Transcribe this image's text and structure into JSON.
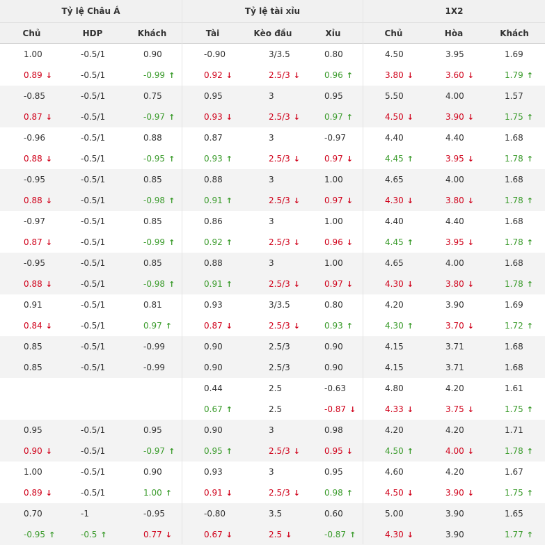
{
  "headers": {
    "groups": [
      "Tỷ lệ Châu Á",
      "Tỷ lệ tài xỉu",
      "1X2"
    ],
    "columns": [
      "Chủ",
      "HDP",
      "Khách",
      "Tài",
      "Kèo đầu",
      "Xỉu",
      "Chủ",
      "Hòa",
      "Khách"
    ]
  },
  "colors": {
    "up": "#3a9b2b",
    "down": "#d0021b",
    "neutral": "#333333",
    "alt_row": "#f3f3f3"
  },
  "rows": [
    {
      "c": [
        [
          "1.00",
          ""
        ],
        [
          "-0.5/1",
          ""
        ],
        [
          "0.90",
          ""
        ],
        [
          "-0.90",
          ""
        ],
        [
          "3/3.5",
          ""
        ],
        [
          "0.80",
          ""
        ],
        [
          "4.50",
          ""
        ],
        [
          "3.95",
          ""
        ],
        [
          "1.69",
          ""
        ]
      ]
    },
    {
      "c": [
        [
          "0.89",
          "down"
        ],
        [
          "-0.5/1",
          ""
        ],
        [
          "-0.99",
          "up"
        ],
        [
          "0.92",
          "down"
        ],
        [
          "2.5/3",
          "down"
        ],
        [
          "0.96",
          "up"
        ],
        [
          "3.80",
          "down"
        ],
        [
          "3.60",
          "down"
        ],
        [
          "1.79",
          "up"
        ]
      ]
    },
    {
      "c": [
        [
          "-0.85",
          ""
        ],
        [
          "-0.5/1",
          ""
        ],
        [
          "0.75",
          ""
        ],
        [
          "0.95",
          ""
        ],
        [
          "3",
          ""
        ],
        [
          "0.95",
          ""
        ],
        [
          "5.50",
          ""
        ],
        [
          "4.00",
          ""
        ],
        [
          "1.57",
          ""
        ]
      ]
    },
    {
      "c": [
        [
          "0.87",
          "down"
        ],
        [
          "-0.5/1",
          ""
        ],
        [
          "-0.97",
          "up"
        ],
        [
          "0.93",
          "down"
        ],
        [
          "2.5/3",
          "down"
        ],
        [
          "0.97",
          "up"
        ],
        [
          "4.50",
          "down"
        ],
        [
          "3.90",
          "down"
        ],
        [
          "1.75",
          "up"
        ]
      ]
    },
    {
      "c": [
        [
          "-0.96",
          ""
        ],
        [
          "-0.5/1",
          ""
        ],
        [
          "0.88",
          ""
        ],
        [
          "0.87",
          ""
        ],
        [
          "3",
          ""
        ],
        [
          "-0.97",
          ""
        ],
        [
          "4.40",
          ""
        ],
        [
          "4.40",
          ""
        ],
        [
          "1.68",
          ""
        ]
      ]
    },
    {
      "c": [
        [
          "0.88",
          "down"
        ],
        [
          "-0.5/1",
          ""
        ],
        [
          "-0.95",
          "up"
        ],
        [
          "0.93",
          "up"
        ],
        [
          "2.5/3",
          "down"
        ],
        [
          "0.97",
          "down"
        ],
        [
          "4.45",
          "up"
        ],
        [
          "3.95",
          "down"
        ],
        [
          "1.78",
          "up"
        ]
      ]
    },
    {
      "c": [
        [
          "-0.95",
          ""
        ],
        [
          "-0.5/1",
          ""
        ],
        [
          "0.85",
          ""
        ],
        [
          "0.88",
          ""
        ],
        [
          "3",
          ""
        ],
        [
          "1.00",
          ""
        ],
        [
          "4.65",
          ""
        ],
        [
          "4.00",
          ""
        ],
        [
          "1.68",
          ""
        ]
      ]
    },
    {
      "c": [
        [
          "0.88",
          "down"
        ],
        [
          "-0.5/1",
          ""
        ],
        [
          "-0.98",
          "up"
        ],
        [
          "0.91",
          "up"
        ],
        [
          "2.5/3",
          "down"
        ],
        [
          "0.97",
          "down"
        ],
        [
          "4.30",
          "down"
        ],
        [
          "3.80",
          "down"
        ],
        [
          "1.78",
          "up"
        ]
      ]
    },
    {
      "c": [
        [
          "-0.97",
          ""
        ],
        [
          "-0.5/1",
          ""
        ],
        [
          "0.85",
          ""
        ],
        [
          "0.86",
          ""
        ],
        [
          "3",
          ""
        ],
        [
          "1.00",
          ""
        ],
        [
          "4.40",
          ""
        ],
        [
          "4.40",
          ""
        ],
        [
          "1.68",
          ""
        ]
      ]
    },
    {
      "c": [
        [
          "0.87",
          "down"
        ],
        [
          "-0.5/1",
          ""
        ],
        [
          "-0.99",
          "up"
        ],
        [
          "0.92",
          "up"
        ],
        [
          "2.5/3",
          "down"
        ],
        [
          "0.96",
          "down"
        ],
        [
          "4.45",
          "up"
        ],
        [
          "3.95",
          "down"
        ],
        [
          "1.78",
          "up"
        ]
      ]
    },
    {
      "c": [
        [
          "-0.95",
          ""
        ],
        [
          "-0.5/1",
          ""
        ],
        [
          "0.85",
          ""
        ],
        [
          "0.88",
          ""
        ],
        [
          "3",
          ""
        ],
        [
          "1.00",
          ""
        ],
        [
          "4.65",
          ""
        ],
        [
          "4.00",
          ""
        ],
        [
          "1.68",
          ""
        ]
      ]
    },
    {
      "c": [
        [
          "0.88",
          "down"
        ],
        [
          "-0.5/1",
          ""
        ],
        [
          "-0.98",
          "up"
        ],
        [
          "0.91",
          "up"
        ],
        [
          "2.5/3",
          "down"
        ],
        [
          "0.97",
          "down"
        ],
        [
          "4.30",
          "down"
        ],
        [
          "3.80",
          "down"
        ],
        [
          "1.78",
          "up"
        ]
      ]
    },
    {
      "c": [
        [
          "0.91",
          ""
        ],
        [
          "-0.5/1",
          ""
        ],
        [
          "0.81",
          ""
        ],
        [
          "0.93",
          ""
        ],
        [
          "3/3.5",
          ""
        ],
        [
          "0.80",
          ""
        ],
        [
          "4.20",
          ""
        ],
        [
          "3.90",
          ""
        ],
        [
          "1.69",
          ""
        ]
      ]
    },
    {
      "c": [
        [
          "0.84",
          "down"
        ],
        [
          "-0.5/1",
          ""
        ],
        [
          "0.97",
          "up"
        ],
        [
          "0.87",
          "down"
        ],
        [
          "2.5/3",
          "down"
        ],
        [
          "0.93",
          "up"
        ],
        [
          "4.30",
          "up"
        ],
        [
          "3.70",
          "down"
        ],
        [
          "1.72",
          "up"
        ]
      ]
    },
    {
      "c": [
        [
          "0.85",
          ""
        ],
        [
          "-0.5/1",
          ""
        ],
        [
          "-0.99",
          ""
        ],
        [
          "0.90",
          ""
        ],
        [
          "2.5/3",
          ""
        ],
        [
          "0.90",
          ""
        ],
        [
          "4.15",
          ""
        ],
        [
          "3.71",
          ""
        ],
        [
          "1.68",
          ""
        ]
      ]
    },
    {
      "c": [
        [
          "0.85",
          ""
        ],
        [
          "-0.5/1",
          ""
        ],
        [
          "-0.99",
          ""
        ],
        [
          "0.90",
          ""
        ],
        [
          "2.5/3",
          ""
        ],
        [
          "0.90",
          ""
        ],
        [
          "4.15",
          ""
        ],
        [
          "3.71",
          ""
        ],
        [
          "1.68",
          ""
        ]
      ]
    },
    {
      "c": [
        [
          "",
          ""
        ],
        [
          "",
          ""
        ],
        [
          "",
          ""
        ],
        [
          "0.44",
          ""
        ],
        [
          "2.5",
          ""
        ],
        [
          "-0.63",
          ""
        ],
        [
          "4.80",
          ""
        ],
        [
          "4.20",
          ""
        ],
        [
          "1.61",
          ""
        ]
      ]
    },
    {
      "c": [
        [
          "",
          ""
        ],
        [
          "",
          ""
        ],
        [
          "",
          ""
        ],
        [
          "0.67",
          "up"
        ],
        [
          "2.5",
          ""
        ],
        [
          "-0.87",
          "down"
        ],
        [
          "4.33",
          "down"
        ],
        [
          "3.75",
          "down"
        ],
        [
          "1.75",
          "up"
        ]
      ]
    },
    {
      "c": [
        [
          "0.95",
          ""
        ],
        [
          "-0.5/1",
          ""
        ],
        [
          "0.95",
          ""
        ],
        [
          "0.90",
          ""
        ],
        [
          "3",
          ""
        ],
        [
          "0.98",
          ""
        ],
        [
          "4.20",
          ""
        ],
        [
          "4.20",
          ""
        ],
        [
          "1.71",
          ""
        ]
      ]
    },
    {
      "c": [
        [
          "0.90",
          "down"
        ],
        [
          "-0.5/1",
          ""
        ],
        [
          "-0.97",
          "up"
        ],
        [
          "0.95",
          "up"
        ],
        [
          "2.5/3",
          "down"
        ],
        [
          "0.95",
          "down"
        ],
        [
          "4.50",
          "up"
        ],
        [
          "4.00",
          "down"
        ],
        [
          "1.78",
          "up"
        ]
      ]
    },
    {
      "c": [
        [
          "1.00",
          ""
        ],
        [
          "-0.5/1",
          ""
        ],
        [
          "0.90",
          ""
        ],
        [
          "0.93",
          ""
        ],
        [
          "3",
          ""
        ],
        [
          "0.95",
          ""
        ],
        [
          "4.60",
          ""
        ],
        [
          "4.20",
          ""
        ],
        [
          "1.67",
          ""
        ]
      ]
    },
    {
      "c": [
        [
          "0.89",
          "down"
        ],
        [
          "-0.5/1",
          ""
        ],
        [
          "1.00",
          "up"
        ],
        [
          "0.91",
          "down"
        ],
        [
          "2.5/3",
          "down"
        ],
        [
          "0.98",
          "up"
        ],
        [
          "4.50",
          "down"
        ],
        [
          "3.90",
          "down"
        ],
        [
          "1.75",
          "up"
        ]
      ]
    },
    {
      "c": [
        [
          "0.70",
          ""
        ],
        [
          "-1",
          ""
        ],
        [
          "-0.95",
          ""
        ],
        [
          "-0.80",
          ""
        ],
        [
          "3.5",
          ""
        ],
        [
          "0.60",
          ""
        ],
        [
          "5.00",
          ""
        ],
        [
          "3.90",
          ""
        ],
        [
          "1.65",
          ""
        ]
      ]
    },
    {
      "c": [
        [
          "-0.95",
          "up"
        ],
        [
          "-0.5",
          "up"
        ],
        [
          "0.77",
          "down"
        ],
        [
          "0.67",
          "down"
        ],
        [
          "2.5",
          "down"
        ],
        [
          "-0.87",
          "up"
        ],
        [
          "4.30",
          "down"
        ],
        [
          "3.90",
          ""
        ],
        [
          "1.77",
          "up"
        ]
      ]
    }
  ]
}
